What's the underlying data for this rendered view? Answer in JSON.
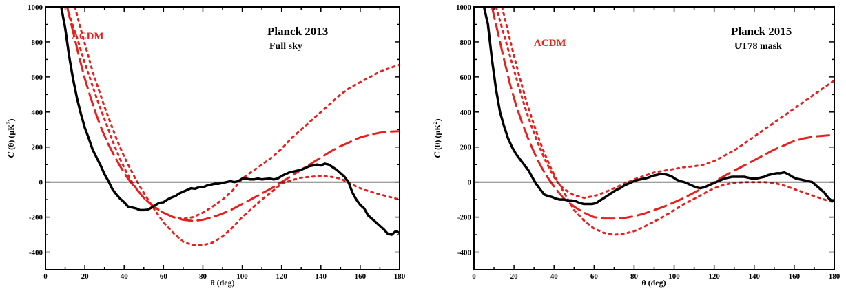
{
  "colors": {
    "data": "#000000",
    "model": "#e8201d",
    "zero_line": "#000000"
  },
  "chart_data": [
    {
      "type": "line",
      "annotations": [
        {
          "text": "ΛCDM",
          "color": "#e8201d"
        },
        {
          "text": "Planck 2013",
          "color": "#000000"
        },
        {
          "text": "Full  sky",
          "color": "#000000"
        }
      ],
      "xlabel": "θ (deg)",
      "ylabel_main": "C",
      "ylabel_rest": "(θ) (μK",
      "ylabel_sup": "2",
      "ylabel_close": ")",
      "xlim": [
        0,
        180
      ],
      "ylim": [
        -500,
        1000
      ],
      "xticks": [
        0,
        20,
        40,
        60,
        80,
        100,
        120,
        140,
        160,
        180
      ],
      "yticks": [
        -400,
        -200,
        0,
        200,
        400,
        600,
        800,
        1000
      ],
      "grid": false,
      "zero_line": true,
      "series": [
        {
          "style": "solid",
          "color": "#000000",
          "x": [
            8,
            10,
            12,
            14,
            16,
            18,
            20,
            22,
            24,
            26,
            28,
            30,
            32,
            34,
            36,
            38,
            40,
            42,
            44,
            46,
            48,
            50,
            52,
            54,
            56,
            58,
            60,
            62,
            64,
            66,
            68,
            70,
            72,
            74,
            76,
            78,
            80,
            82,
            84,
            86,
            88,
            90,
            92,
            94,
            96,
            98,
            100,
            102,
            104,
            106,
            108,
            110,
            112,
            114,
            116,
            118,
            120,
            122,
            124,
            126,
            128,
            130,
            132,
            134,
            136,
            138,
            140,
            142,
            144,
            146,
            148,
            150,
            152,
            154,
            156,
            158,
            160,
            162,
            164,
            166,
            168,
            170,
            172,
            174,
            176,
            178,
            180
          ],
          "y": [
            1000,
            880,
            720,
            590,
            480,
            390,
            310,
            250,
            185,
            140,
            95,
            45,
            5,
            -40,
            -70,
            -95,
            -115,
            -140,
            -145,
            -150,
            -160,
            -160,
            -158,
            -145,
            -130,
            -118,
            -115,
            -100,
            -88,
            -80,
            -65,
            -55,
            -45,
            -35,
            -38,
            -30,
            -30,
            -20,
            -15,
            -10,
            -10,
            -5,
            0,
            5,
            0,
            5,
            20,
            20,
            15,
            15,
            20,
            15,
            18,
            20,
            15,
            20,
            35,
            45,
            55,
            60,
            65,
            70,
            80,
            90,
            95,
            100,
            95,
            105,
            100,
            85,
            70,
            50,
            30,
            0,
            -60,
            -100,
            -130,
            -150,
            -190,
            -210,
            -230,
            -250,
            -270,
            -295,
            -300,
            -280,
            -290
          ]
        },
        {
          "style": "dashed",
          "color": "#e8201d",
          "x": [
            11,
            14,
            17,
            20,
            23,
            26,
            29,
            32,
            35,
            38,
            41,
            44,
            47,
            50,
            55,
            60,
            65,
            70,
            75,
            80,
            85,
            90,
            95,
            100,
            105,
            110,
            115,
            120,
            125,
            130,
            135,
            140,
            145,
            150,
            155,
            160,
            165,
            170,
            175,
            180
          ],
          "y": [
            1000,
            860,
            720,
            590,
            480,
            380,
            290,
            215,
            150,
            90,
            35,
            -10,
            -50,
            -90,
            -140,
            -175,
            -200,
            -215,
            -222,
            -215,
            -200,
            -180,
            -155,
            -125,
            -95,
            -65,
            -35,
            0,
            35,
            70,
            105,
            140,
            175,
            205,
            230,
            255,
            270,
            282,
            288,
            290
          ]
        },
        {
          "style": "dotted",
          "color": "#e8201d",
          "x": [
            11,
            14,
            17,
            20,
            23,
            26,
            29,
            32,
            35,
            38,
            41,
            44,
            47,
            50,
            55,
            60,
            65,
            70,
            75,
            80,
            85,
            90,
            95,
            100,
            105,
            110,
            115,
            120,
            125,
            130,
            135,
            140,
            145,
            150,
            155,
            160,
            165,
            170,
            175,
            180
          ],
          "y": [
            1000,
            890,
            790,
            680,
            580,
            480,
            390,
            300,
            210,
            130,
            60,
            0,
            -50,
            -90,
            -140,
            -175,
            -200,
            -210,
            -200,
            -175,
            -140,
            -100,
            -50,
            20,
            60,
            100,
            140,
            190,
            250,
            300,
            350,
            400,
            450,
            500,
            540,
            570,
            600,
            630,
            650,
            670
          ]
        },
        {
          "style": "dotted",
          "color": "#e8201d",
          "x": [
            15,
            18,
            21,
            24,
            27,
            30,
            33,
            36,
            39,
            42,
            45,
            48,
            51,
            55,
            60,
            65,
            70,
            75,
            80,
            85,
            90,
            95,
            100,
            105,
            110,
            115,
            120,
            125,
            130,
            135,
            140,
            145,
            150,
            155,
            160,
            165,
            170,
            175,
            180
          ],
          "y": [
            1000,
            870,
            750,
            630,
            530,
            430,
            340,
            250,
            170,
            100,
            35,
            -25,
            -80,
            -150,
            -230,
            -290,
            -340,
            -360,
            -360,
            -345,
            -310,
            -260,
            -200,
            -150,
            -100,
            -55,
            -10,
            10,
            25,
            30,
            35,
            30,
            20,
            -10,
            -35,
            -55,
            -70,
            -85,
            -100
          ]
        }
      ]
    },
    {
      "type": "line",
      "annotations": [
        {
          "text": "ΛCDM",
          "color": "#e8201d"
        },
        {
          "text": "Planck 2015",
          "color": "#000000"
        },
        {
          "text": "UT78 mask",
          "color": "#000000"
        }
      ],
      "xlabel": "θ (deg)",
      "ylabel_main": "C",
      "ylabel_rest": "(θ) (μK",
      "ylabel_sup": "2",
      "ylabel_close": ")",
      "xlim": [
        0,
        180
      ],
      "ylim": [
        -500,
        1000
      ],
      "xticks": [
        0,
        20,
        40,
        60,
        80,
        100,
        120,
        140,
        160,
        180
      ],
      "yticks": [
        -400,
        -200,
        0,
        200,
        400,
        600,
        800,
        1000
      ],
      "grid": false,
      "zero_line": true,
      "series": [
        {
          "style": "solid",
          "color": "#000000",
          "x": [
            5,
            7,
            9,
            11,
            13,
            15,
            17,
            19,
            21,
            23,
            25,
            27,
            29,
            31,
            33,
            35,
            37,
            39,
            41,
            43,
            45,
            47,
            49,
            51,
            53,
            55,
            57,
            59,
            61,
            63,
            65,
            67,
            69,
            71,
            73,
            75,
            77,
            79,
            81,
            83,
            85,
            87,
            89,
            91,
            93,
            95,
            97,
            99,
            101,
            103,
            105,
            107,
            109,
            111,
            113,
            115,
            117,
            119,
            121,
            123,
            125,
            127,
            129,
            131,
            133,
            135,
            137,
            139,
            141,
            143,
            145,
            147,
            149,
            151,
            153,
            155,
            157,
            159,
            161,
            163,
            165,
            167,
            169,
            171,
            173,
            175,
            177,
            179,
            180
          ],
          "y": [
            1000,
            900,
            700,
            530,
            400,
            320,
            250,
            200,
            160,
            130,
            100,
            70,
            30,
            -10,
            -40,
            -70,
            -80,
            -85,
            -95,
            -100,
            -100,
            -105,
            -105,
            -110,
            -120,
            -125,
            -125,
            -125,
            -120,
            -105,
            -90,
            -75,
            -60,
            -45,
            -35,
            -20,
            -10,
            0,
            10,
            15,
            20,
            25,
            35,
            40,
            45,
            45,
            40,
            30,
            15,
            5,
            0,
            -10,
            -20,
            -30,
            -35,
            -30,
            -20,
            -10,
            0,
            10,
            20,
            25,
            30,
            30,
            30,
            30,
            25,
            20,
            20,
            25,
            30,
            40,
            45,
            50,
            50,
            55,
            45,
            30,
            20,
            15,
            10,
            5,
            0,
            -20,
            -40,
            -60,
            -90,
            -110,
            -105
          ]
        },
        {
          "style": "dashed",
          "color": "#e8201d",
          "x": [
            9,
            12,
            15,
            18,
            21,
            24,
            27,
            30,
            33,
            36,
            39,
            42,
            45,
            50,
            55,
            60,
            65,
            70,
            75,
            80,
            85,
            90,
            95,
            100,
            105,
            110,
            115,
            120,
            125,
            130,
            135,
            140,
            145,
            150,
            155,
            160,
            165,
            170,
            175,
            180
          ],
          "y": [
            1000,
            850,
            700,
            560,
            440,
            340,
            250,
            170,
            100,
            40,
            -10,
            -55,
            -95,
            -140,
            -175,
            -200,
            -208,
            -208,
            -205,
            -195,
            -180,
            -160,
            -140,
            -115,
            -90,
            -60,
            -30,
            0,
            35,
            65,
            95,
            125,
            155,
            185,
            210,
            235,
            250,
            260,
            265,
            270
          ]
        },
        {
          "style": "dotted",
          "color": "#e8201d",
          "x": [
            11,
            14,
            17,
            20,
            23,
            26,
            29,
            32,
            35,
            38,
            41,
            44,
            47,
            50,
            55,
            60,
            65,
            70,
            75,
            80,
            85,
            90,
            95,
            100,
            105,
            110,
            115,
            120,
            125,
            130,
            135,
            140,
            145,
            150,
            155,
            160,
            165,
            170,
            175,
            180
          ],
          "y": [
            1000,
            880,
            760,
            640,
            520,
            410,
            310,
            220,
            140,
            70,
            10,
            -30,
            -55,
            -75,
            -90,
            -80,
            -60,
            -35,
            -10,
            15,
            35,
            55,
            65,
            75,
            85,
            90,
            100,
            120,
            150,
            180,
            220,
            260,
            300,
            340,
            380,
            420,
            460,
            500,
            540,
            580
          ]
        },
        {
          "style": "dotted",
          "color": "#e8201d",
          "x": [
            14,
            17,
            20,
            23,
            26,
            29,
            32,
            35,
            38,
            41,
            44,
            47,
            50,
            55,
            60,
            65,
            70,
            75,
            80,
            85,
            90,
            95,
            100,
            105,
            110,
            115,
            120,
            125,
            130,
            135,
            140,
            145,
            150,
            155,
            160,
            165,
            170,
            175,
            180
          ],
          "y": [
            1000,
            860,
            720,
            590,
            470,
            360,
            260,
            170,
            90,
            20,
            -40,
            -100,
            -160,
            -220,
            -265,
            -290,
            -300,
            -295,
            -280,
            -255,
            -225,
            -195,
            -160,
            -125,
            -95,
            -65,
            -35,
            -15,
            -5,
            0,
            0,
            0,
            -5,
            -20,
            -40,
            -60,
            -80,
            -100,
            -115
          ]
        }
      ]
    }
  ]
}
